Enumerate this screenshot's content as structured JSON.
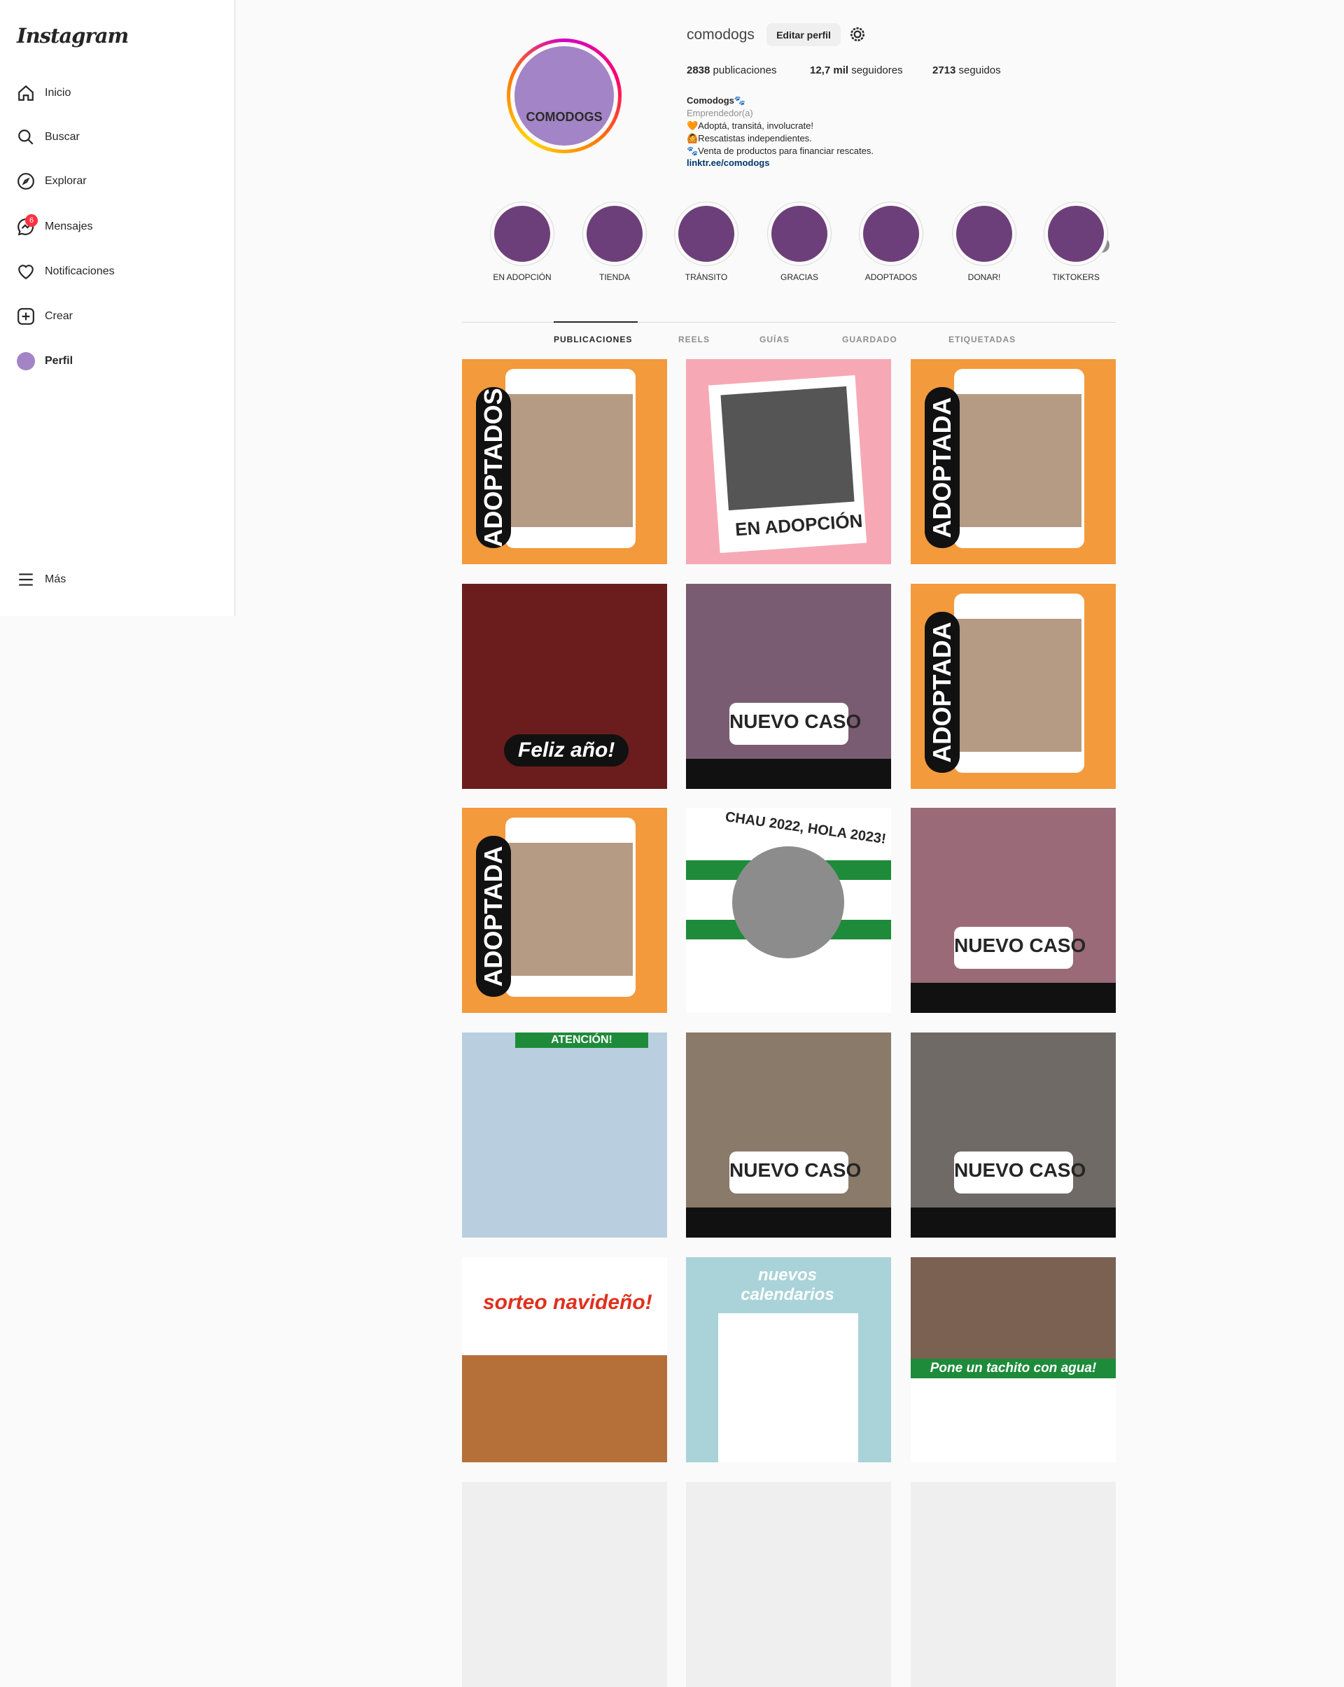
{
  "sidebar": {
    "logo": "Instagram",
    "nav": [
      "Inicio",
      "Buscar",
      "Explorar",
      "Mensajes",
      "Notificaciones",
      "Crear",
      "Perfil"
    ],
    "more": "Más",
    "messages_badge": "6"
  },
  "profile": {
    "username": "comodogs",
    "edit_button": "Editar perfil",
    "stats": [
      {
        "count": "2838",
        "label": "publicaciones"
      },
      {
        "count": "12,7 mil",
        "label": "seguidores"
      },
      {
        "count": "2713",
        "label": "seguidos"
      }
    ],
    "avatar_text": "COMODOGS",
    "bio": [
      "Comodogs🐾",
      "Emprendedor(a)",
      "🧡Adoptá, transitá, involucrate!",
      "🙆Rescatistas independientes.",
      "🐾Venta de productos para financiar rescates.",
      "linktr.ee/comodogs"
    ]
  },
  "highlights": [
    "EN ADOPCIÓN",
    "TIENDA",
    "TRÁNSITO",
    "GRACIAS",
    "ADOPTADOS",
    "DONAR!",
    "TIKTOKERS"
  ],
  "tabs": [
    "PUBLICACIONES",
    "REELS",
    "GUÍAS",
    "GUARDADO",
    "ETIQUETADAS"
  ],
  "posts": [
    {
      "caption": "ADOPTADOS",
      "color": "#f39a3c"
    },
    {
      "caption": "EN ADOPCIÓN",
      "color": "#f6a9b4"
    },
    {
      "caption": "ADOPTADA",
      "color": "#f39a3c"
    },
    {
      "caption": "Feliz año!",
      "color": "#6b1d1d"
    },
    {
      "caption": "NUEVO CASO",
      "color": "#7a5c72"
    },
    {
      "caption": "ADOPTADA",
      "color": "#f39a3c"
    },
    {
      "caption": "ADOPTADA",
      "color": "#f39a3c"
    },
    {
      "caption": "CHAU 2022, HOLA 2023!",
      "color": "#ffffff"
    },
    {
      "caption": "NUEVO CASO",
      "color": "#9b6a78"
    },
    {
      "caption": "ATENCIÓN!",
      "color": "#b9cfe0"
    },
    {
      "caption": "NUEVO CASO",
      "color": "#8a7a6a"
    },
    {
      "caption": "NUEVO CASO",
      "color": "#6f6a66"
    },
    {
      "caption": "sorteo navideño!",
      "color": "#ffffff"
    },
    {
      "caption": "nuevos calendarios",
      "color": "#a9d3d8"
    },
    {
      "caption": "Pone un tachito con agua!",
      "color": "#ffffff"
    },
    {
      "color": "#efefef"
    },
    {
      "color": "#efefef"
    },
    {
      "color": "#efefef"
    }
  ]
}
